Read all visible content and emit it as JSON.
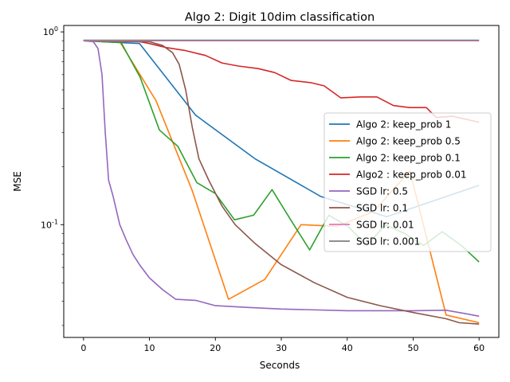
{
  "chart_data": {
    "type": "line",
    "title": "Algo 2: Digit 10dim classification",
    "xlabel": "Seconds",
    "ylabel": "MSE",
    "xlim": [
      -3,
      63
    ],
    "ylim": [
      0.026,
      1.08
    ],
    "yscale": "log",
    "grid": false,
    "legend_position": "center-right",
    "x_ticks": [
      0,
      10,
      20,
      30,
      40,
      50,
      60
    ],
    "y_ticks": [
      0.1,
      1
    ],
    "y_tick_labels": [
      "10^-1",
      "10^0"
    ],
    "series": [
      {
        "name": "Algo 2: keep_prob 1",
        "color": "#1f77b4",
        "points": [
          [
            0,
            0.9
          ],
          [
            8.5,
            0.87
          ],
          [
            17,
            0.37
          ],
          [
            26,
            0.22
          ],
          [
            36,
            0.14
          ],
          [
            46,
            0.11
          ],
          [
            60,
            0.16
          ]
        ]
      },
      {
        "name": "Algo 2: keep_prob 0.5",
        "color": "#ff7f0e",
        "points": [
          [
            0,
            0.9
          ],
          [
            5.5,
            0.89
          ],
          [
            11,
            0.44
          ],
          [
            16.5,
            0.15
          ],
          [
            22,
            0.041
          ],
          [
            27.5,
            0.052
          ],
          [
            33,
            0.1
          ],
          [
            38.5,
            0.098
          ],
          [
            44,
            0.117
          ],
          [
            49.5,
            0.19
          ],
          [
            55,
            0.034
          ],
          [
            60,
            0.031
          ]
        ]
      },
      {
        "name": "Algo 2: keep_prob 0.1",
        "color": "#2ca02c",
        "points": [
          [
            0,
            0.9
          ],
          [
            5.7,
            0.88
          ],
          [
            8.6,
            0.58
          ],
          [
            11.5,
            0.31
          ],
          [
            14.3,
            0.255
          ],
          [
            17.2,
            0.165
          ],
          [
            20,
            0.145
          ],
          [
            22.9,
            0.106
          ],
          [
            25.8,
            0.112
          ],
          [
            28.6,
            0.152
          ],
          [
            31.5,
            0.105
          ],
          [
            34.3,
            0.074
          ],
          [
            37.2,
            0.112
          ],
          [
            40.1,
            0.098
          ],
          [
            43,
            0.078
          ],
          [
            45.8,
            0.1
          ],
          [
            48.7,
            0.09
          ],
          [
            51.6,
            0.078
          ],
          [
            54.4,
            0.092
          ],
          [
            57.3,
            0.078
          ],
          [
            60,
            0.064
          ]
        ]
      },
      {
        "name": "Algo2 : keep_prob 0.01",
        "color": "#d62728",
        "points": [
          [
            0,
            0.9
          ],
          [
            8.5,
            0.89
          ],
          [
            10,
            0.87
          ],
          [
            12.5,
            0.83
          ],
          [
            15.5,
            0.8
          ],
          [
            18.5,
            0.755
          ],
          [
            21,
            0.69
          ],
          [
            23.5,
            0.665
          ],
          [
            26.5,
            0.645
          ],
          [
            29,
            0.615
          ],
          [
            31.5,
            0.56
          ],
          [
            34.5,
            0.545
          ],
          [
            36.5,
            0.525
          ],
          [
            39,
            0.455
          ],
          [
            42,
            0.46
          ],
          [
            44.5,
            0.46
          ],
          [
            47,
            0.415
          ],
          [
            49.5,
            0.405
          ],
          [
            52,
            0.405
          ],
          [
            53.5,
            0.36
          ],
          [
            56,
            0.365
          ],
          [
            60,
            0.34
          ]
        ]
      },
      {
        "name": "SGD lr: 0.5",
        "color": "#9467bd",
        "points": [
          [
            0,
            0.9
          ],
          [
            1.5,
            0.89
          ],
          [
            2.2,
            0.82
          ],
          [
            2.8,
            0.6
          ],
          [
            3.3,
            0.3
          ],
          [
            3.8,
            0.17
          ],
          [
            4.5,
            0.14
          ],
          [
            5.5,
            0.1
          ],
          [
            6.5,
            0.083
          ],
          [
            7.5,
            0.07
          ],
          [
            8.5,
            0.062
          ],
          [
            10,
            0.053
          ],
          [
            12,
            0.046
          ],
          [
            14,
            0.041
          ],
          [
            17,
            0.0405
          ],
          [
            20,
            0.038
          ],
          [
            25,
            0.0372
          ],
          [
            30,
            0.0365
          ],
          [
            40,
            0.0358
          ],
          [
            50,
            0.0358
          ],
          [
            55,
            0.036
          ],
          [
            58,
            0.0345
          ],
          [
            60,
            0.0335
          ]
        ]
      },
      {
        "name": "SGD lr: 0.1",
        "color": "#8c564b",
        "points": [
          [
            0,
            0.9
          ],
          [
            10,
            0.89
          ],
          [
            12,
            0.85
          ],
          [
            13.5,
            0.78
          ],
          [
            14.5,
            0.68
          ],
          [
            15.5,
            0.5
          ],
          [
            16.5,
            0.32
          ],
          [
            17.5,
            0.22
          ],
          [
            19,
            0.17
          ],
          [
            21,
            0.125
          ],
          [
            23,
            0.1
          ],
          [
            26,
            0.08
          ],
          [
            30,
            0.062
          ],
          [
            35,
            0.05
          ],
          [
            40,
            0.042
          ],
          [
            45,
            0.038
          ],
          [
            50,
            0.035
          ],
          [
            55,
            0.0325
          ],
          [
            57,
            0.031
          ],
          [
            60,
            0.0305
          ]
        ]
      },
      {
        "name": "SGD lr: 0.01",
        "color": "#e377c2",
        "points": [
          [
            0,
            0.9
          ],
          [
            60,
            0.9
          ]
        ]
      },
      {
        "name": "SGD lr: 0.001",
        "color": "#7f7f7f",
        "points": [
          [
            0,
            0.905
          ],
          [
            60,
            0.905
          ]
        ]
      }
    ]
  }
}
